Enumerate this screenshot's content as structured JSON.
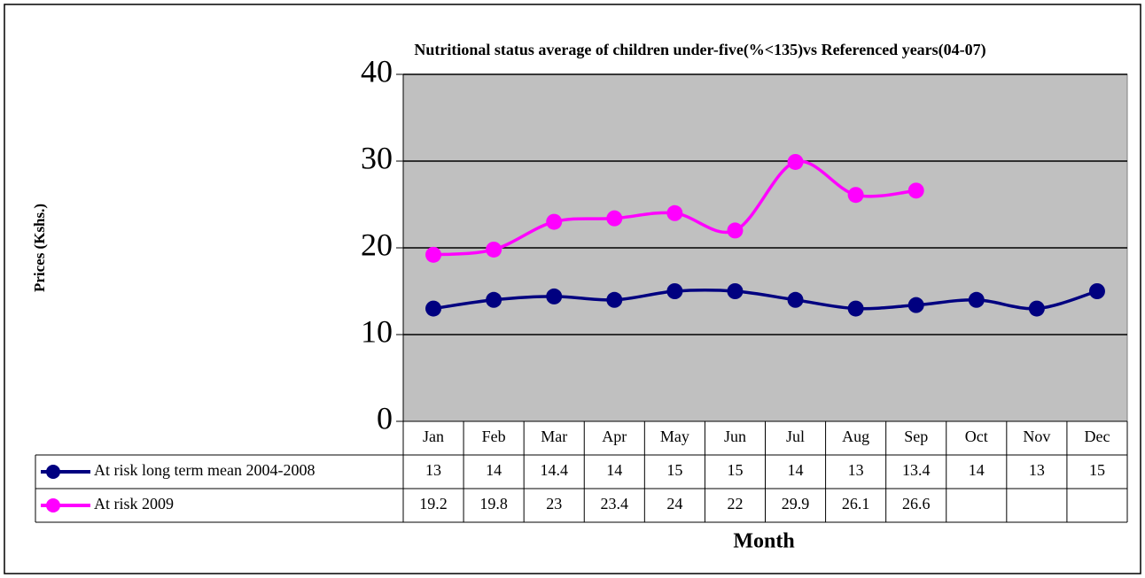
{
  "chart_data": {
    "type": "line",
    "title": "Nutritional status average of children under-five(%<135)vs Referenced years(04-07)",
    "y_label": "Prices (Kshs.)",
    "x_label": "Month",
    "categories": [
      "Jan",
      "Feb",
      "Mar",
      "Apr",
      "May",
      "Jun",
      "Jul",
      "Aug",
      "Sep",
      "Oct",
      "Nov",
      "Dec"
    ],
    "series": [
      {
        "name": "At risk long term mean 2004-2008",
        "color": "#000080",
        "values": [
          13,
          14,
          14.4,
          14,
          15,
          15,
          14,
          13,
          13.4,
          14,
          13,
          15
        ]
      },
      {
        "name": "At risk 2009",
        "color": "#ff00ff",
        "values": [
          19.2,
          19.8,
          23,
          23.4,
          24,
          22,
          29.9,
          26.1,
          26.6,
          null,
          null,
          null
        ]
      }
    ],
    "ylim": [
      0,
      40
    ],
    "yticks": [
      0,
      10,
      20,
      30,
      40
    ],
    "grid": true,
    "smooth": true,
    "data_table": true
  }
}
